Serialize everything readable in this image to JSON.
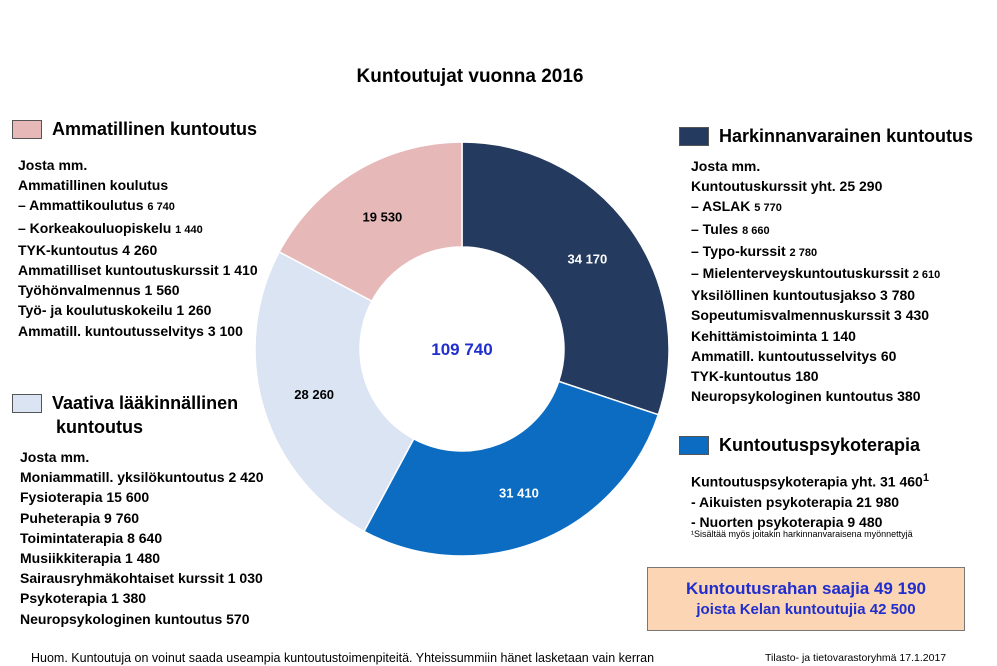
{
  "chart_data": {
    "type": "donut",
    "title": "Kuntoutujat vuonna 2016",
    "total_label": "109 740",
    "slices": [
      {
        "name": "Harkinnanvarainen kuntoutus",
        "value": 34170,
        "label": "34 170",
        "color": "#243a5e",
        "label_color": "#ffffff"
      },
      {
        "name": "Kuntoutuspsykoterapia",
        "value": 31410,
        "label": "31 410",
        "color": "#0b6cc2",
        "label_color": "#ffffff"
      },
      {
        "name": "Vaativa lääkinnällinen kuntoutus",
        "value": 28260,
        "label": "28 260",
        "color": "#dbe4f3",
        "label_color": "#000000"
      },
      {
        "name": "Ammatillinen kuntoutus",
        "value": 19530,
        "label": "19 530",
        "color": "#e6b8b7",
        "label_color": "#000000"
      }
    ]
  },
  "legend": {
    "ammatillinen": {
      "title": "Ammatillinen kuntoutus",
      "lines": [
        {
          "text": "Josta mm."
        },
        {
          "text": "Ammatillinen koulutus"
        },
        {
          "text": "– Ammattikoulutus ",
          "small": "6 740"
        },
        {
          "text": "– Korkeakouluopiskelu ",
          "small": "1 440"
        },
        {
          "text": "TYK-kuntoutus 4 260"
        },
        {
          "text": "Ammatilliset kuntoutuskurssit 1 410"
        },
        {
          "text": "Työhönvalmennus 1 560"
        },
        {
          "text": "Työ- ja koulutuskokeilu 1 260"
        },
        {
          "text": "Ammatill. kuntoutusselvitys  3 100"
        }
      ]
    },
    "vaativa": {
      "title_line1": "Vaativa lääkinnällinen",
      "title_line2": "kuntoutus",
      "lines": [
        {
          "text": "Josta mm."
        },
        {
          "text": "Moniammatill. yksilökuntoutus 2 420"
        },
        {
          "text": "Fysioterapia  15 600"
        },
        {
          "text": "Puheterapia 9 760"
        },
        {
          "text": "Toimintaterapia 8 640"
        },
        {
          "text": "Musiikkiterapia 1 480"
        },
        {
          "text": "Sairausryhmäkohtaiset kurssit  1 030"
        },
        {
          "text": "Psykoterapia 1 380"
        },
        {
          "text": "Neuropsykologinen kuntoutus 570"
        }
      ]
    },
    "harkinnanvarainen": {
      "title": "Harkinnanvarainen kuntoutus",
      "lines": [
        {
          "text": "Josta mm."
        },
        {
          "text": "Kuntoutuskurssit yht. 25 290"
        },
        {
          "text": "– ASLAK ",
          "small": "5 770"
        },
        {
          "text": "– Tules ",
          "small": "8 660"
        },
        {
          "text": "– Typo-kurssit ",
          "small": "2 780"
        },
        {
          "text": "– Mielenterveyskuntoutuskurssit ",
          "small": "2 610"
        },
        {
          "text": "Yksilöllinen kuntoutusjakso 3 780"
        },
        {
          "text": "Sopeutumisvalmennuskurssit 3 430"
        },
        {
          "text": "Kehittämistoiminta 1 140"
        },
        {
          "text": "Ammatill. kuntoutusselvitys 60"
        },
        {
          "text": "TYK-kuntoutus 180"
        },
        {
          "text": "Neuropsykologinen kuntoutus 380"
        }
      ]
    },
    "psykoterapia": {
      "title": "Kuntoutuspsykoterapia",
      "lines": [
        {
          "text": "Kuntoutuspsykoterapia yht. 31 460",
          "sup": "1"
        },
        {
          "text": "- Aikuisten psykoterapia 21 980"
        },
        {
          "text": "- Nuorten psykoterapia 9 480"
        }
      ],
      "footnote": "¹Sisältää myös joitakin harkinnanvaraisena myönnettyjä"
    }
  },
  "highlight": {
    "main": "Kuntoutusrahan saajia 49 190",
    "sub": "joista Kelan kuntoutujia 42 500"
  },
  "footer": {
    "note": "Huom. Kuntoutuja  on voinut saada useampia kuntoutustoimenpiteitä. Yhteissummiin hänet lasketaan vain kerran",
    "credit": "Tilasto- ja tietovarastoryhmä 17.1.2017"
  }
}
